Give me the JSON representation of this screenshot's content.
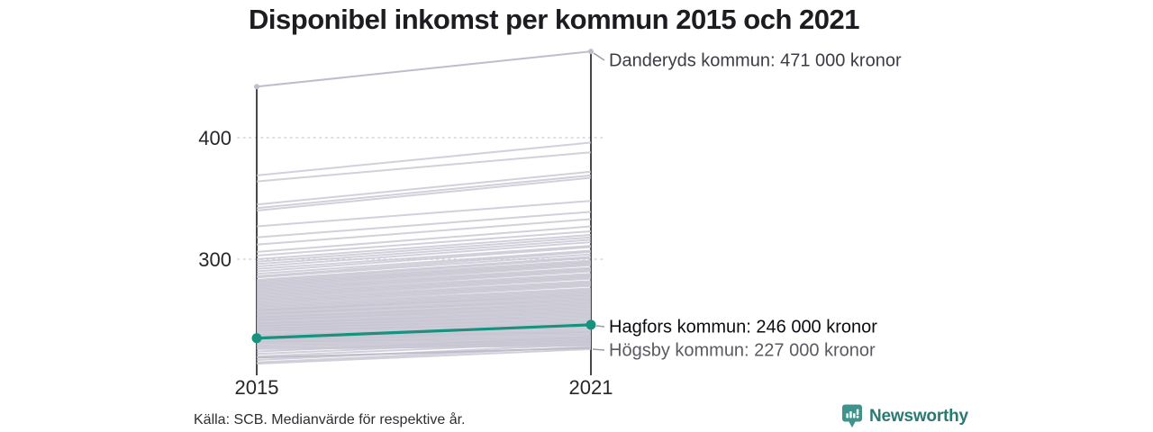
{
  "title": "Disponibel inkomst per kommun 2015 och 2021",
  "source_note": "Källa: SCB. Medianvärde för respektive år.",
  "branding": {
    "name": "Newsworthy",
    "icon": "newsworthy-barchart-speech-bubble-icon",
    "text_color": "#2b7a71",
    "icon_color": "#3f938a"
  },
  "colors": {
    "highlight": "#16927e",
    "background_line": "#c7c5d2",
    "named_gray_line": "#bfbdcb",
    "axis": "#1a1a1e",
    "grid": "#d2d2d8",
    "leader": "#9b9ba3"
  },
  "annotations": [
    {
      "id": "danderyd",
      "label": "Danderyds kommun: 471 000 kronor"
    },
    {
      "id": "hagfors",
      "label": "Hagfors kommun: 246 000 kronor"
    },
    {
      "id": "hogsby",
      "label": "Högsby kommun: 227 000 kronor"
    }
  ],
  "chart_data": {
    "type": "line",
    "variant": "slopegraph",
    "title": "Disponibel inkomst per kommun 2015 och 2021",
    "x": [
      2015,
      2021
    ],
    "x_tick_labels": [
      "2015",
      "2021"
    ],
    "y_ticks": [
      400,
      300
    ],
    "y_axis_unit": "thousand kronor (labels show e.g. 471 000 kronor)",
    "grid": "dotted horizontal at y ticks",
    "highlight": {
      "name": "Hagfors kommun",
      "values": [
        235,
        246
      ]
    },
    "named": [
      {
        "id": "danderyd",
        "name": "Danderyds kommun",
        "values": [
          442,
          471
        ],
        "end_dots": true
      },
      {
        "id": "hogsby",
        "name": "Högsby kommun",
        "values": [
          219,
          227
        ],
        "end_dots": false
      }
    ],
    "others": [
      [
        369,
        396
      ],
      [
        364,
        388
      ],
      [
        345,
        372
      ],
      [
        342,
        369
      ],
      [
        340,
        367
      ],
      [
        327,
        348
      ],
      [
        318,
        339
      ],
      [
        312,
        333
      ],
      [
        306,
        327
      ],
      [
        303,
        323
      ],
      [
        300,
        320
      ],
      [
        298,
        318
      ],
      [
        296,
        316
      ],
      [
        294,
        314
      ],
      [
        292,
        311
      ],
      [
        290,
        310
      ],
      [
        288,
        307
      ],
      [
        286,
        306
      ],
      [
        285,
        304
      ],
      [
        283,
        302
      ],
      [
        282,
        301
      ],
      [
        281,
        299
      ],
      [
        280,
        298
      ],
      [
        279,
        297
      ],
      [
        278,
        296
      ],
      [
        277,
        295
      ],
      [
        276,
        293
      ],
      [
        275,
        292
      ],
      [
        274,
        291
      ],
      [
        273,
        290
      ],
      [
        272,
        288
      ],
      [
        271,
        287
      ],
      [
        270,
        286
      ],
      [
        269,
        285
      ],
      [
        268,
        284
      ],
      [
        267,
        282
      ],
      [
        266,
        281
      ],
      [
        265,
        280
      ],
      [
        264,
        279
      ],
      [
        263,
        278
      ],
      [
        262,
        276
      ],
      [
        261,
        275
      ],
      [
        260,
        274
      ],
      [
        259,
        273
      ],
      [
        258,
        272
      ],
      [
        258,
        270
      ],
      [
        257,
        271
      ],
      [
        256,
        269
      ],
      [
        255,
        268
      ],
      [
        255,
        266
      ],
      [
        254,
        267
      ],
      [
        253,
        265
      ],
      [
        252,
        264
      ],
      [
        252,
        263
      ],
      [
        251,
        262
      ],
      [
        250,
        261
      ],
      [
        250,
        260
      ],
      [
        249,
        259
      ],
      [
        248,
        258
      ],
      [
        247,
        257
      ],
      [
        247,
        256
      ],
      [
        246,
        255
      ],
      [
        245,
        254
      ],
      [
        245,
        253
      ],
      [
        244,
        252
      ],
      [
        243,
        251
      ],
      [
        243,
        250
      ],
      [
        242,
        249
      ],
      [
        241,
        248
      ],
      [
        241,
        247
      ],
      [
        240,
        246
      ],
      [
        239,
        245
      ],
      [
        238,
        244
      ],
      [
        238,
        243
      ],
      [
        237,
        242
      ],
      [
        236,
        241
      ],
      [
        236,
        240
      ],
      [
        235,
        240
      ],
      [
        234,
        239
      ],
      [
        234,
        238
      ],
      [
        233,
        237
      ],
      [
        232,
        236
      ],
      [
        232,
        235
      ],
      [
        231,
        234
      ],
      [
        230,
        233
      ],
      [
        229,
        232
      ],
      [
        228,
        231
      ],
      [
        227,
        230
      ],
      [
        226,
        229
      ],
      [
        224,
        236
      ],
      [
        222,
        234
      ],
      [
        220,
        232
      ],
      [
        217,
        230
      ],
      [
        215,
        228
      ],
      [
        214,
        226
      ]
    ]
  }
}
